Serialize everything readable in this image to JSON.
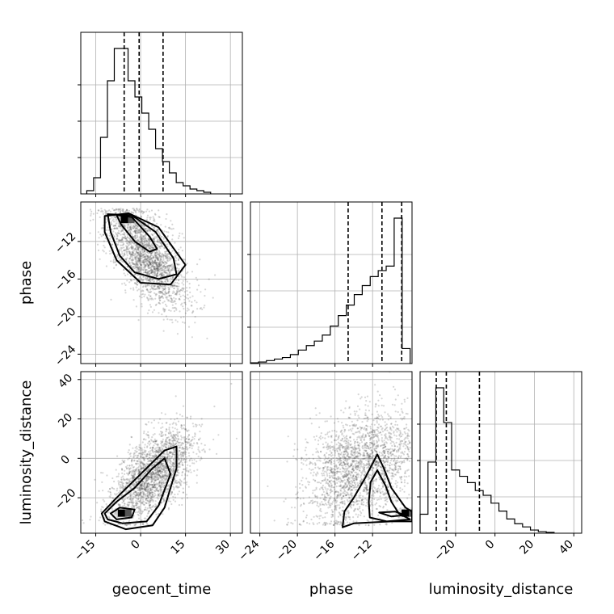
{
  "chart_data": {
    "type": "corner",
    "parameters": [
      "geocent_time",
      "phase",
      "luminosity_distance"
    ],
    "axis_labels": {
      "geocent_time": "geocent_time",
      "phase": "phase",
      "luminosity_distance": "luminosity_distance"
    },
    "ranges": {
      "geocent_time": [
        -20,
        34
      ],
      "phase": [
        -25,
        -7.8
      ],
      "luminosity_distance": [
        -38,
        44
      ]
    },
    "ticks": {
      "geocent_time": [
        -15,
        0,
        15,
        30
      ],
      "phase": [
        -24,
        -20,
        -16,
        -12
      ],
      "luminosity_distance": [
        -20,
        0,
        20,
        40
      ]
    },
    "tick_labels": {
      "geocent_time": [
        "−15",
        "0",
        "15",
        "30"
      ],
      "phase": [
        "−24",
        "−20",
        "−16",
        "−12"
      ],
      "luminosity_distance": [
        "−20",
        "0",
        "20",
        "40"
      ]
    },
    "histograms": {
      "geocent_time": {
        "bin_start": -18,
        "bin_width": 2.3,
        "counts": [
          0.02,
          0.1,
          0.35,
          0.7,
          0.9,
          0.9,
          0.7,
          0.6,
          0.5,
          0.4,
          0.28,
          0.2,
          0.13,
          0.07,
          0.05,
          0.03,
          0.02,
          0.01
        ],
        "quantiles": [
          -5.5,
          -0.5,
          7.5
        ]
      },
      "phase": {
        "bin_start": -25,
        "bin_width": 0.85,
        "counts": [
          0.005,
          0.01,
          0.02,
          0.03,
          0.04,
          0.06,
          0.09,
          0.12,
          0.15,
          0.19,
          0.25,
          0.32,
          0.39,
          0.46,
          0.52,
          0.58,
          0.62,
          0.65,
          0.97,
          0.1
        ],
        "quantiles": [
          -14.6,
          -11.0,
          -8.9
        ]
      },
      "luminosity_distance": {
        "bin_start": -38,
        "bin_width": 4,
        "counts": [
          0.12,
          0.45,
          0.92,
          0.7,
          0.4,
          0.36,
          0.32,
          0.27,
          0.24,
          0.19,
          0.14,
          0.09,
          0.06,
          0.04,
          0.02,
          0.01,
          0.005
        ],
        "quantiles": [
          -29.8,
          -24.7,
          -7.9
        ]
      }
    },
    "scatter_pairs": [
      {
        "x": "geocent_time",
        "y": "phase",
        "mean": [
          2,
          -13.5
        ],
        "sd": [
          6.5,
          2.8
        ],
        "corr": -0.6,
        "density_peak": [
          -5,
          -9.7
        ],
        "contours": [
          [
            [
              -8,
              -9.2
            ],
            [
              -3,
              -9.4
            ],
            [
              3,
              -11.5
            ],
            [
              5.5,
              -12.8
            ],
            [
              3,
              -13.1
            ],
            [
              -2,
              -12
            ],
            [
              -6.5,
              -10.2
            ]
          ],
          [
            [
              -11,
              -9.1
            ],
            [
              -3,
              -9.2
            ],
            [
              5,
              -11
            ],
            [
              11,
              -13.8
            ],
            [
              12,
              -15.5
            ],
            [
              6,
              -16
            ],
            [
              -2,
              -15.3
            ],
            [
              -7,
              -13.5
            ],
            [
              -10,
              -11
            ]
          ],
          [
            [
              -12,
              -9.3
            ],
            [
              -4,
              -9.0
            ],
            [
              6,
              -10.5
            ],
            [
              15,
              -14.5
            ],
            [
              10,
              -16.6
            ],
            [
              0,
              -16.4
            ],
            [
              -8,
              -14
            ],
            [
              -12,
              -11
            ]
          ]
        ]
      },
      {
        "x": "geocent_time",
        "y": "luminosity_distance",
        "mean": [
          4,
          -8
        ],
        "sd": [
          7,
          12
        ],
        "corr": 0.6,
        "density_peak": [
          -6,
          -28
        ],
        "contours": [
          [
            [
              -10,
              -28
            ],
            [
              -7,
              -25
            ],
            [
              -2,
              -26
            ],
            [
              -3,
              -30
            ],
            [
              -8,
              -31
            ]
          ],
          [
            [
              -12,
              -28
            ],
            [
              -8,
              -22
            ],
            [
              -2,
              -15
            ],
            [
              4,
              -5
            ],
            [
              8,
              0
            ],
            [
              10,
              -8
            ],
            [
              6,
              -24
            ],
            [
              2,
              -32
            ],
            [
              -6,
              -33
            ],
            [
              -11,
              -31
            ]
          ],
          [
            [
              -13,
              -28
            ],
            [
              -8,
              -20
            ],
            [
              0,
              -8
            ],
            [
              8,
              4
            ],
            [
              12,
              6
            ],
            [
              12,
              -5
            ],
            [
              8,
              -25
            ],
            [
              4,
              -34
            ],
            [
              -5,
              -36
            ],
            [
              -12,
              -32
            ]
          ]
        ]
      },
      {
        "x": "phase",
        "y": "luminosity_distance",
        "mean": [
          -13.5,
          -5
        ],
        "sd": [
          3.0,
          14
        ],
        "corr": 0.3,
        "density_peak": [
          -8.4,
          -28
        ],
        "contours": [
          [
            [
              -11.3,
              -27.5
            ],
            [
              -9.6,
              -27
            ],
            [
              -8.6,
              -28.8
            ],
            [
              -10,
              -29.5
            ]
          ],
          [
            [
              -12.2,
              -12
            ],
            [
              -11.5,
              -6
            ],
            [
              -10.6,
              -14
            ],
            [
              -10,
              -22
            ],
            [
              -9.2,
              -28
            ],
            [
              -8,
              -31
            ],
            [
              -10.5,
              -32
            ],
            [
              -12.3,
              -30
            ],
            [
              -12.4,
              -22
            ]
          ],
          [
            [
              -15.2,
              -35
            ],
            [
              -15,
              -27
            ],
            [
              -14,
              -20
            ],
            [
              -12.8,
              -10
            ],
            [
              -11.5,
              2
            ],
            [
              -10.8,
              -5
            ],
            [
              -10,
              -15
            ],
            [
              -8.5,
              -25
            ],
            [
              -7.8,
              -27
            ],
            [
              -7.8,
              -32
            ],
            [
              -10,
              -32
            ],
            [
              -14,
              -33
            ]
          ]
        ]
      }
    ]
  }
}
